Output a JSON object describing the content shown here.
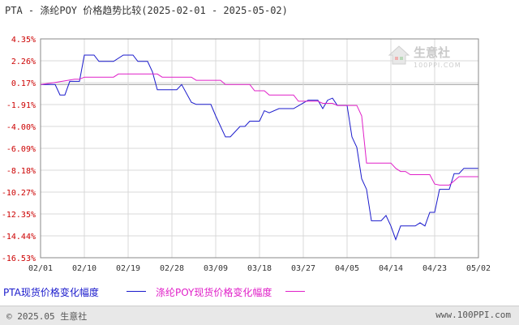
{
  "title": "PTA - 涤纶POY 价格趋势比较(2025-02-01 - 2025-05-02)",
  "watermark": {
    "name": "生意社",
    "url": "100PPI.COM"
  },
  "footer": {
    "copyright": "© 2025.05 生意社",
    "site": "www.100PPI.com"
  },
  "colors": {
    "pta": "#1a1acc",
    "poy": "#e020c8",
    "ylabel": "#cc0000",
    "grid": "#d8d8d8",
    "axis": "#444444"
  },
  "chart_data": {
    "type": "line",
    "title": "PTA - 涤纶POY 价格趋势比较(2025-02-01 - 2025-05-02)",
    "xlabel": "",
    "ylabel": "",
    "ylim": [
      -16.53,
      4.35
    ],
    "y_ticks": [
      "4.35%",
      "2.26%",
      "0.17%",
      "-1.91%",
      "-4.00%",
      "-6.09%",
      "-8.18%",
      "-10.27%",
      "-12.35%",
      "-14.44%",
      "-16.53%"
    ],
    "y_tick_values": [
      4.35,
      2.26,
      0.17,
      -1.91,
      -4.0,
      -6.09,
      -8.18,
      -10.27,
      -12.35,
      -14.44,
      -16.53
    ],
    "x_ticks": [
      "02/01",
      "02/10",
      "02/19",
      "02/28",
      "03/09",
      "03/18",
      "03/27",
      "04/05",
      "04/14",
      "04/23",
      "05/02"
    ],
    "x_range_days": [
      0,
      90
    ],
    "grid": true,
    "legend_position": "bottom",
    "series": [
      {
        "name": "PTA现货价格变化幅度",
        "color": "#1a1acc",
        "points": [
          [
            0,
            0
          ],
          [
            3,
            0
          ],
          [
            4,
            -1.0
          ],
          [
            5,
            -1.0
          ],
          [
            6,
            0.3
          ],
          [
            8,
            0.3
          ],
          [
            9,
            2.8
          ],
          [
            11,
            2.8
          ],
          [
            12,
            2.2
          ],
          [
            15,
            2.2
          ],
          [
            17,
            2.8
          ],
          [
            19,
            2.8
          ],
          [
            20,
            2.2
          ],
          [
            22,
            2.2
          ],
          [
            23,
            1.2
          ],
          [
            24,
            -0.5
          ],
          [
            28,
            -0.5
          ],
          [
            29,
            0
          ],
          [
            31,
            -1.7
          ],
          [
            32,
            -1.9
          ],
          [
            35,
            -1.9
          ],
          [
            36,
            -3.0
          ],
          [
            38,
            -5.0
          ],
          [
            39,
            -5.0
          ],
          [
            41,
            -4.0
          ],
          [
            42,
            -4.0
          ],
          [
            43,
            -3.5
          ],
          [
            45,
            -3.5
          ],
          [
            46,
            -2.5
          ],
          [
            47,
            -2.7
          ],
          [
            49,
            -2.3
          ],
          [
            52,
            -2.3
          ],
          [
            55,
            -1.5
          ],
          [
            57,
            -1.5
          ],
          [
            58,
            -2.3
          ],
          [
            59,
            -1.5
          ],
          [
            60,
            -1.3
          ],
          [
            61,
            -2.0
          ],
          [
            63,
            -2.0
          ],
          [
            64,
            -5.0
          ],
          [
            65,
            -6.0
          ],
          [
            66,
            -9.0
          ],
          [
            67,
            -10.0
          ],
          [
            68,
            -13.0
          ],
          [
            70,
            -13.0
          ],
          [
            71,
            -12.5
          ],
          [
            72,
            -13.5
          ],
          [
            73,
            -14.8
          ],
          [
            74,
            -13.5
          ],
          [
            77,
            -13.5
          ],
          [
            78,
            -13.2
          ],
          [
            79,
            -13.5
          ],
          [
            80,
            -12.2
          ],
          [
            81,
            -12.2
          ],
          [
            82,
            -10.0
          ],
          [
            84,
            -10.0
          ],
          [
            85,
            -8.5
          ],
          [
            86,
            -8.5
          ],
          [
            87,
            -8.0
          ],
          [
            90,
            -8.0
          ]
        ]
      },
      {
        "name": "涤纶POY现货价格变化幅度",
        "color": "#e020c8",
        "points": [
          [
            0,
            0
          ],
          [
            3,
            0.2
          ],
          [
            7,
            0.5
          ],
          [
            8,
            0.5
          ],
          [
            9,
            0.7
          ],
          [
            15,
            0.7
          ],
          [
            16,
            1.0
          ],
          [
            24,
            1.0
          ],
          [
            25,
            0.7
          ],
          [
            31,
            0.7
          ],
          [
            32,
            0.4
          ],
          [
            37,
            0.4
          ],
          [
            38,
            0
          ],
          [
            43,
            0
          ],
          [
            44,
            -0.6
          ],
          [
            46,
            -0.6
          ],
          [
            47,
            -1.0
          ],
          [
            52,
            -1.0
          ],
          [
            53,
            -1.6
          ],
          [
            57,
            -1.6
          ],
          [
            58,
            -1.8
          ],
          [
            60,
            -1.8
          ],
          [
            61,
            -2.0
          ],
          [
            65,
            -2.0
          ],
          [
            66,
            -3.0
          ],
          [
            67,
            -7.5
          ],
          [
            72,
            -7.5
          ],
          [
            73,
            -8.0
          ],
          [
            74,
            -8.3
          ],
          [
            75,
            -8.3
          ],
          [
            76,
            -8.6
          ],
          [
            80,
            -8.6
          ],
          [
            81,
            -9.5
          ],
          [
            82,
            -9.6
          ],
          [
            84,
            -9.6
          ],
          [
            85,
            -9.2
          ],
          [
            86,
            -8.8
          ],
          [
            90,
            -8.8
          ]
        ]
      }
    ]
  }
}
